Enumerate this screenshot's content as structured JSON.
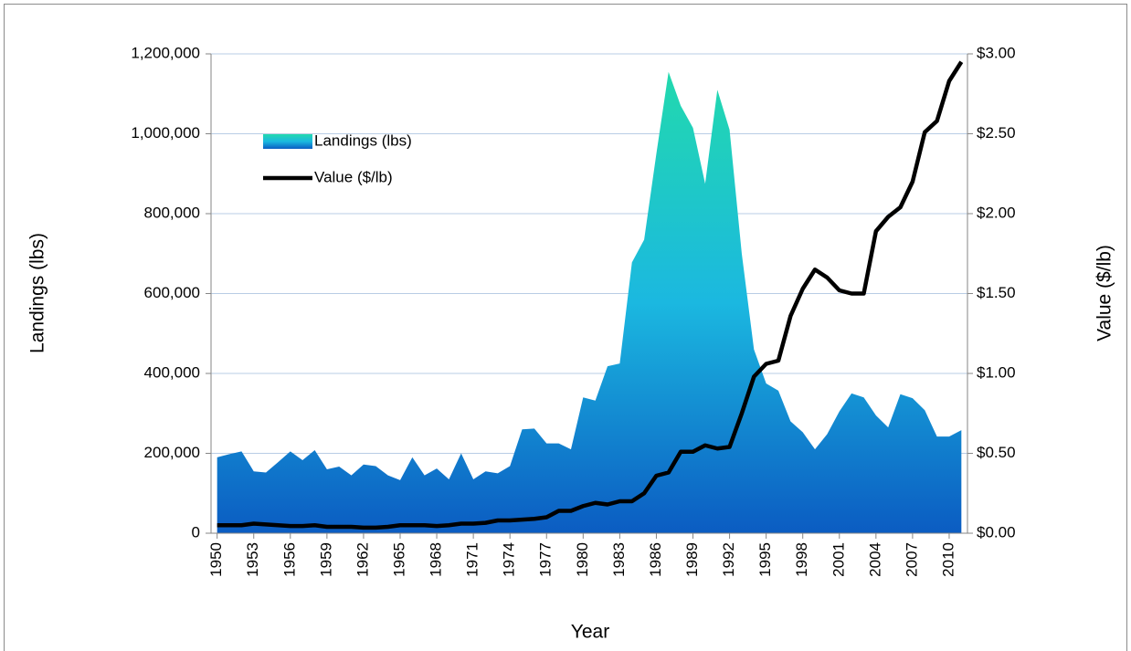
{
  "chart_data": {
    "type": "area_line",
    "x_label": "Year",
    "y_label": "Landings (lbs)",
    "y2_label": "Value ($/lb)",
    "x": [
      1950,
      1951,
      1952,
      1953,
      1954,
      1955,
      1956,
      1957,
      1958,
      1959,
      1960,
      1961,
      1962,
      1963,
      1964,
      1965,
      1966,
      1967,
      1968,
      1969,
      1970,
      1971,
      1972,
      1973,
      1974,
      1975,
      1976,
      1977,
      1978,
      1979,
      1980,
      1981,
      1982,
      1983,
      1984,
      1985,
      1986,
      1987,
      1988,
      1989,
      1990,
      1991,
      1992,
      1993,
      1994,
      1995,
      1996,
      1997,
      1998,
      1999,
      2000,
      2001,
      2002,
      2003,
      2004,
      2005,
      2006,
      2007,
      2008,
      2009,
      2010,
      2011
    ],
    "xlim": [
      1949.5,
      2011.5
    ],
    "xticks": [
      1950,
      1953,
      1956,
      1959,
      1962,
      1965,
      1968,
      1971,
      1974,
      1977,
      1980,
      1983,
      1986,
      1989,
      1992,
      1995,
      1998,
      2001,
      2004,
      2007,
      2010
    ],
    "ylim": [
      0,
      1200000
    ],
    "yticks": [
      {
        "value": 0,
        "label": "0"
      },
      {
        "value": 200000,
        "label": "200,000"
      },
      {
        "value": 400000,
        "label": "400,000"
      },
      {
        "value": 600000,
        "label": "600,000"
      },
      {
        "value": 800000,
        "label": "800,000"
      },
      {
        "value": 1000000,
        "label": "1,000,000"
      },
      {
        "value": 1200000,
        "label": "1,200,000"
      }
    ],
    "y2lim": [
      0,
      3
    ],
    "y2ticks": [
      {
        "value": 0,
        "label": "$0.00"
      },
      {
        "value": 0.5,
        "label": "$0.50"
      },
      {
        "value": 1,
        "label": "$1.00"
      },
      {
        "value": 1.5,
        "label": "$1.50"
      },
      {
        "value": 2,
        "label": "$2.00"
      },
      {
        "value": 2.5,
        "label": "$2.50"
      },
      {
        "value": 3,
        "label": "$3.00"
      }
    ],
    "grid": true,
    "series": [
      {
        "name": "Landings (lbs)",
        "kind": "area",
        "color": [
          "#22d9ae",
          "#1bb8e0",
          "#0b5cc2"
        ],
        "values": [
          190000,
          198000,
          205000,
          155000,
          152000,
          178000,
          205000,
          183000,
          208000,
          160000,
          167000,
          145000,
          172000,
          168000,
          145000,
          133000,
          190000,
          145000,
          162000,
          135000,
          200000,
          135000,
          155000,
          150000,
          168000,
          260000,
          262000,
          225000,
          225000,
          210000,
          340000,
          332000,
          418000,
          425000,
          678000,
          735000,
          950000,
          1155000,
          1070000,
          1015000,
          875000,
          1110000,
          1010000,
          700000,
          460000,
          375000,
          357000,
          280000,
          253000,
          210000,
          248000,
          305000,
          350000,
          340000,
          295000,
          265000,
          348000,
          338000,
          308000,
          242000,
          242000,
          258000
        ]
      },
      {
        "name": "Value ($/lb)",
        "kind": "line",
        "axis": "y2",
        "color": "#000000",
        "values": [
          0.05,
          0.05,
          0.05,
          0.06,
          0.055,
          0.05,
          0.045,
          0.045,
          0.05,
          0.04,
          0.04,
          0.04,
          0.035,
          0.035,
          0.04,
          0.05,
          0.05,
          0.05,
          0.045,
          0.05,
          0.06,
          0.06,
          0.065,
          0.08,
          0.08,
          0.085,
          0.09,
          0.1,
          0.14,
          0.14,
          0.17,
          0.19,
          0.18,
          0.2,
          0.2,
          0.25,
          0.36,
          0.38,
          0.51,
          0.51,
          0.55,
          0.53,
          0.54,
          0.75,
          0.98,
          1.06,
          1.08,
          1.36,
          1.53,
          1.65,
          1.6,
          1.52,
          1.5,
          1.5,
          1.89,
          1.98,
          2.04,
          2.2,
          2.51,
          2.58,
          2.83,
          2.95
        ]
      }
    ]
  }
}
